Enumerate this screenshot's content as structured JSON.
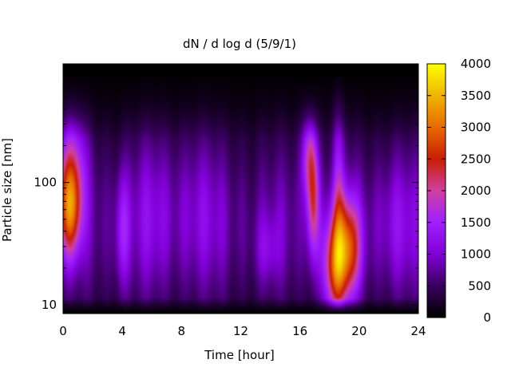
{
  "chart_data": {
    "type": "heatmap",
    "title": "dN / d log d (5/9/1)",
    "xlabel": "Time [hour]",
    "ylabel": "Particle size [nm]",
    "xlim": [
      0,
      24
    ],
    "ylim": [
      8.5,
      930
    ],
    "yscale": "log",
    "x_ticks": [
      0,
      4,
      8,
      12,
      16,
      20,
      24
    ],
    "y_ticks": [
      10,
      100
    ],
    "colorbar": {
      "range": [
        0,
        4000
      ],
      "ticks": [
        0,
        500,
        1000,
        1500,
        2000,
        2500,
        3000,
        3500,
        4000
      ],
      "colormap": [
        "#000000",
        "#3a0060",
        "#8200d8",
        "#a020ff",
        "#d040a0",
        "#c81e00",
        "#e86a00",
        "#f0b400",
        "#ffff00"
      ]
    },
    "blobs": [
      {
        "t": 0.45,
        "d": 60,
        "st": 0.55,
        "sd": 0.28,
        "a": 2200
      },
      {
        "t": 0.6,
        "d": 160,
        "st": 0.7,
        "sd": 0.3,
        "a": 1000
      },
      {
        "t": 4.0,
        "d": 40,
        "st": 0.35,
        "sd": 0.35,
        "a": 800
      },
      {
        "t": 6.0,
        "d": 60,
        "st": 1.0,
        "sd": 0.5,
        "a": 350
      },
      {
        "t": 9.0,
        "d": 60,
        "st": 1.2,
        "sd": 0.5,
        "a": 350
      },
      {
        "t": 13.8,
        "d": 28,
        "st": 0.6,
        "sd": 0.2,
        "a": 450
      },
      {
        "t": 16.6,
        "d": 170,
        "st": 0.35,
        "sd": 0.25,
        "a": 1200
      },
      {
        "t": 16.9,
        "d": 70,
        "st": 0.3,
        "sd": 0.35,
        "a": 1600
      },
      {
        "t": 18.3,
        "d": 20,
        "st": 0.55,
        "sd": 0.3,
        "a": 1800
      },
      {
        "t": 19.3,
        "d": 28,
        "st": 0.6,
        "sd": 0.3,
        "a": 2100
      },
      {
        "t": 18.6,
        "d": 90,
        "st": 0.3,
        "sd": 0.6,
        "a": 800
      },
      {
        "t": 22.5,
        "d": 45,
        "st": 1.0,
        "sd": 0.4,
        "a": 450
      }
    ],
    "background": {
      "base": 850,
      "size_center": 45,
      "size_sigma": 0.55,
      "floor": 120
    },
    "saturated_missing": "top band above ~700 nm is black (no data)"
  }
}
